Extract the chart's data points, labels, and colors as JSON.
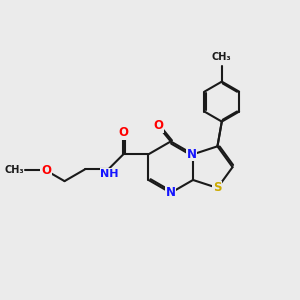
{
  "bg_color": "#ebebeb",
  "bond_color": "#1a1a1a",
  "bond_width": 1.5,
  "dbo": 0.06,
  "atom_colors": {
    "N": "#1414ff",
    "O": "#ff0000",
    "S": "#ccaa00",
    "C": "#1a1a1a",
    "H": "#008080"
  },
  "font_size": 8.5,
  "xlim": [
    0,
    10
  ],
  "ylim": [
    0,
    10
  ]
}
